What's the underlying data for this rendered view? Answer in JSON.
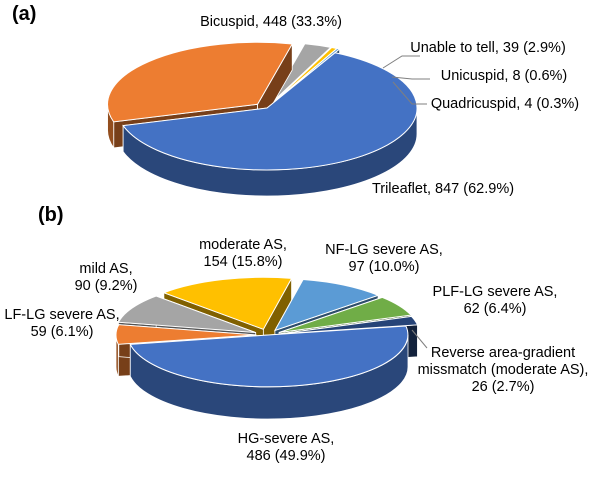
{
  "chart_data": [
    {
      "type": "pie",
      "panel_label": "(a)",
      "style": "3d-exploded",
      "slices": [
        {
          "name": "Trileaflet",
          "count": 847,
          "percent": 62.9,
          "label": "Trileaflet, 847 (62.9%)",
          "color": "#4472C4"
        },
        {
          "name": "Bicuspid",
          "count": 448,
          "percent": 33.3,
          "label": "Bicuspid, 448 (33.3%)",
          "color": "#ED7D31"
        },
        {
          "name": "Unable to tell",
          "count": 39,
          "percent": 2.9,
          "label": "Unable to tell, 39 (2.9%)",
          "color": "#A5A5A5"
        },
        {
          "name": "Unicuspid",
          "count": 8,
          "percent": 0.6,
          "label": "Unicuspid, 8 (0.6%)",
          "color": "#FFC000"
        },
        {
          "name": "Quadricuspid",
          "count": 4,
          "percent": 0.3,
          "label": "Quadricuspid, 4 (0.3%)",
          "color": "#5B9BD5"
        }
      ]
    },
    {
      "type": "pie",
      "panel_label": "(b)",
      "style": "3d-exploded",
      "slices": [
        {
          "name": "HG-severe AS",
          "count": 486,
          "percent": 49.9,
          "label": [
            "HG-severe AS,",
            "486 (49.9%)"
          ],
          "color": "#4472C4"
        },
        {
          "name": "LF-LG severe AS",
          "count": 59,
          "percent": 6.1,
          "label": [
            "LF-LG severe AS,",
            "59 (6.1%)"
          ],
          "color": "#ED7D31"
        },
        {
          "name": "mild AS",
          "count": 90,
          "percent": 9.2,
          "label": [
            "mild AS,",
            "90 (9.2%)"
          ],
          "color": "#A5A5A5"
        },
        {
          "name": "moderate AS",
          "count": 154,
          "percent": 15.8,
          "label": [
            "moderate AS,",
            "154 (15.8%)"
          ],
          "color": "#FFC000"
        },
        {
          "name": "NF-LG severe AS",
          "count": 97,
          "percent": 10.0,
          "label": [
            "NF-LG severe AS,",
            "97 (10.0%)"
          ],
          "color": "#5B9BD5"
        },
        {
          "name": "PLF-LG severe AS",
          "count": 62,
          "percent": 6.4,
          "label": [
            "PLF-LG severe AS,",
            "62 (6.4%)"
          ],
          "color": "#70AD47"
        },
        {
          "name": "Reverse area-gradient missmatch (moderate AS)",
          "count": 26,
          "percent": 2.7,
          "label": [
            "Reverse area-gradient",
            "missmatch (moderate AS),",
            "26 (2.7%)"
          ],
          "color": "#264478"
        }
      ]
    }
  ]
}
